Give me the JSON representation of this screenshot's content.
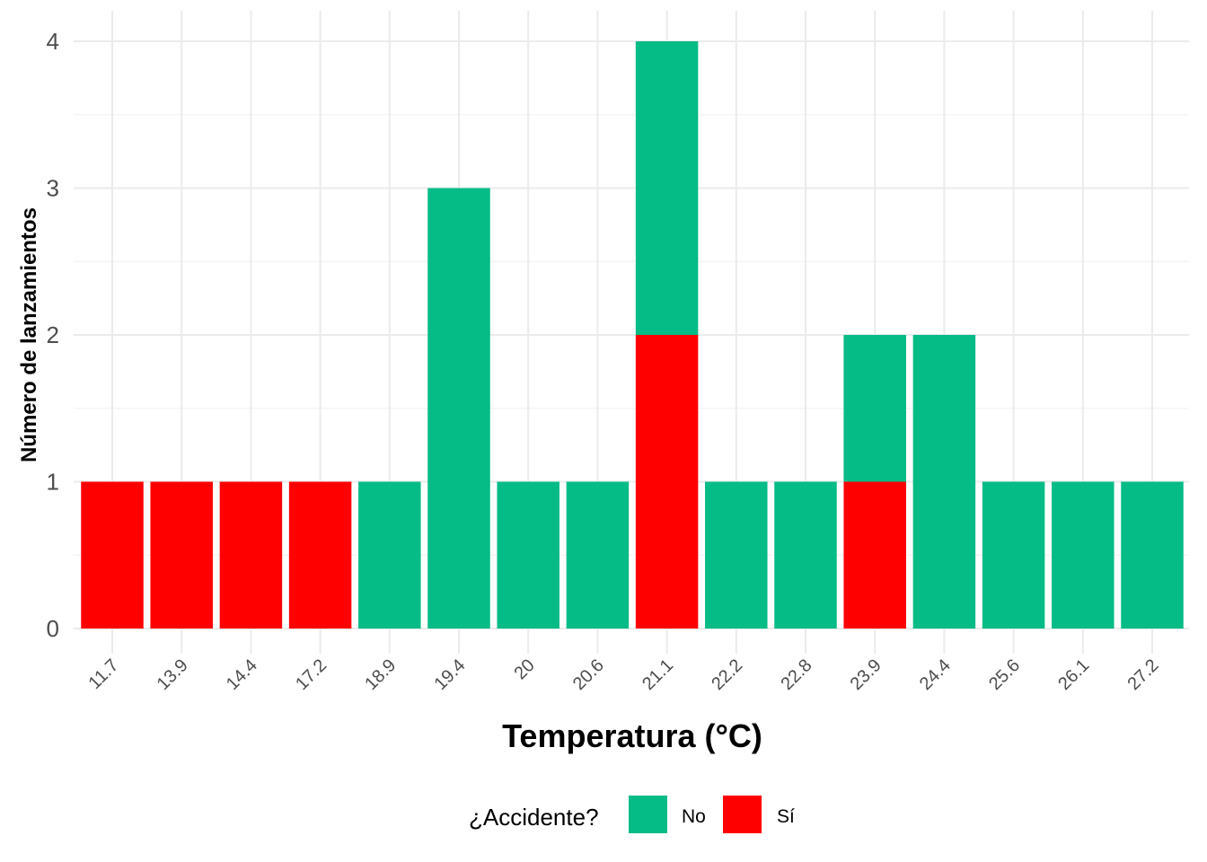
{
  "chart_data": {
    "type": "bar",
    "stacked": true,
    "xlabel": "Temperatura (°C)",
    "ylabel": "Número de lanzamientos",
    "categories": [
      "11.7",
      "13.9",
      "14.4",
      "17.2",
      "18.9",
      "19.4",
      "20",
      "20.6",
      "21.1",
      "22.2",
      "22.8",
      "23.9",
      "24.4",
      "25.6",
      "26.1",
      "27.2"
    ],
    "series": [
      {
        "name": "Sí",
        "color": "#FF0000",
        "values": [
          1,
          1,
          1,
          1,
          0,
          0,
          0,
          0,
          2,
          0,
          0,
          1,
          0,
          0,
          0,
          0
        ]
      },
      {
        "name": "No",
        "color": "#05BB86",
        "values": [
          0,
          0,
          0,
          0,
          1,
          3,
          1,
          1,
          2,
          1,
          1,
          1,
          2,
          1,
          1,
          1
        ]
      }
    ],
    "ylim": [
      0,
      4
    ],
    "yticks": [
      0,
      1,
      2,
      3,
      4
    ],
    "grid": true,
    "legend": {
      "title": "¿Accidente?",
      "position": "bottom",
      "entries": [
        {
          "label": "No",
          "color": "#05BB86"
        },
        {
          "label": "Sí",
          "color": "#FF0000"
        }
      ]
    }
  }
}
